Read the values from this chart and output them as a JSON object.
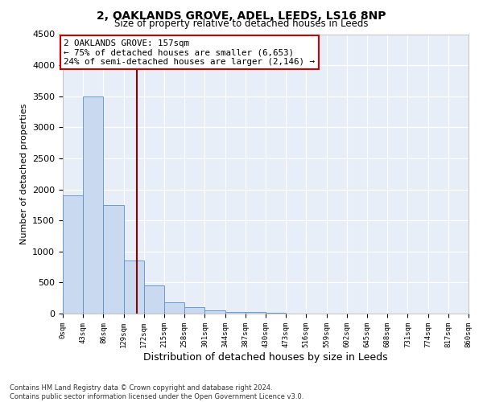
{
  "title": "2, OAKLANDS GROVE, ADEL, LEEDS, LS16 8NP",
  "subtitle": "Size of property relative to detached houses in Leeds",
  "xlabel": "Distribution of detached houses by size in Leeds",
  "ylabel": "Number of detached properties",
  "annotation_line1": "2 OAKLANDS GROVE: 157sqm",
  "annotation_line2": "← 75% of detached houses are smaller (6,653)",
  "annotation_line3": "24% of semi-detached houses are larger (2,146) →",
  "footer1": "Contains HM Land Registry data © Crown copyright and database right 2024.",
  "footer2": "Contains public sector information licensed under the Open Government Licence v3.0.",
  "bin_edges": [
    0,
    43,
    86,
    129,
    172,
    215,
    258,
    301,
    344,
    387,
    430,
    473,
    516,
    559,
    602,
    645,
    688,
    731,
    774,
    817,
    860
  ],
  "bar_heights": [
    1900,
    3500,
    1750,
    850,
    450,
    175,
    100,
    55,
    30,
    20,
    10,
    5,
    2,
    1,
    0,
    0,
    0,
    0,
    0,
    0
  ],
  "bar_color": "#c9d9ef",
  "bar_edge_color": "#5a8fc5",
  "vline_color": "#8b0000",
  "vline_x": 157,
  "box_edge_color": "#cc0000",
  "bg_color": "#e8eef8",
  "grid_color": "#ffffff",
  "ylim": [
    0,
    4500
  ],
  "yticks": [
    0,
    500,
    1000,
    1500,
    2000,
    2500,
    3000,
    3500,
    4000,
    4500
  ]
}
